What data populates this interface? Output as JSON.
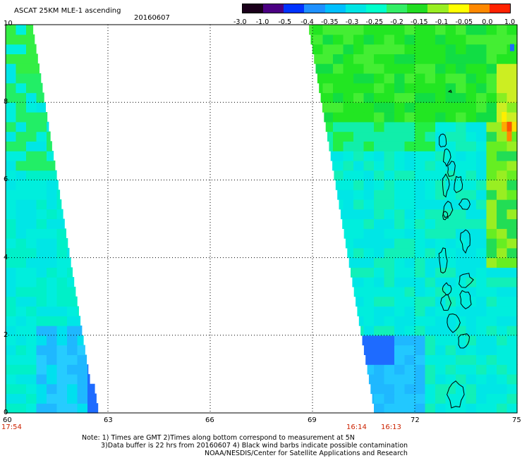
{
  "header": {
    "title": "ASCAT 25KM MLE-1 ascending",
    "date": "20160607"
  },
  "colorbar": {
    "labels": [
      "-3.0",
      "-1.0",
      "-0.5",
      "-0.4",
      "-0.35",
      "-0.3",
      "-0.25",
      "-0.2",
      "-0.15",
      "-0.1",
      "-0.05",
      "0.0",
      "1.0"
    ],
    "colors": [
      "#1a001a",
      "#4b0082",
      "#0033ff",
      "#1e90ff",
      "#00bfff",
      "#00e5e5",
      "#00ffcc",
      "#33ee66",
      "#22dd22",
      "#99ee22",
      "#ffff00",
      "#ff8800",
      "#ff2200"
    ]
  },
  "axes": {
    "x_ticks": [
      "60",
      "63",
      "66",
      "69",
      "72",
      "75"
    ],
    "y_ticks": [
      "10",
      "8",
      "6",
      "4",
      "2",
      "0"
    ]
  },
  "times": {
    "left": "17:54",
    "middle_a": "16:14",
    "middle_b": "16:13"
  },
  "notes": {
    "line1": "Note: 1) Times are GMT 2)Times along bottom correspond to measurement at 5N",
    "line2": "3)Data buffer is 22 hrs from 20160607 4) Black wind barbs indicate possible contamination",
    "line3": "NOAA/NESDIS/Center for Satellite Applications and Research"
  },
  "map": {
    "x_range": [
      60,
      75
    ],
    "y_range": [
      0,
      10
    ],
    "grid": "dotted"
  }
}
